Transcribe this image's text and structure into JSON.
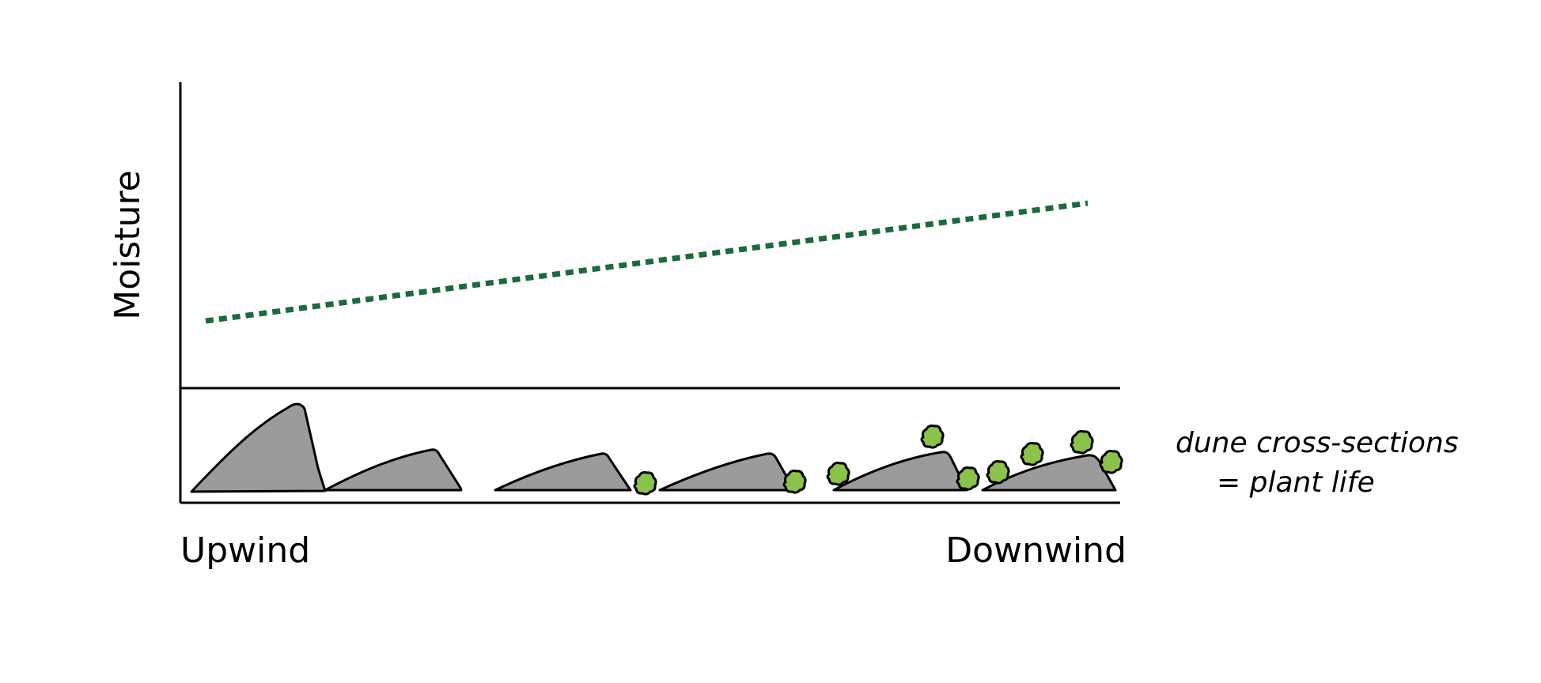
{
  "diagram": {
    "y_axis_label": "Moisture",
    "x_start_label": "Upwind",
    "x_end_label": "Downwind",
    "legend": {
      "line1": "dune cross-sections",
      "line2": "= plant life"
    },
    "colors": {
      "trend_line": "#1b6b3a",
      "dune_fill": "#9b9b9b",
      "plant_fill": "#8bc34a",
      "outline": "#000000"
    },
    "trend": "moisture increases from upwind to downwind",
    "dunes": [
      {
        "plants": 0
      },
      {
        "plants": 0
      },
      {
        "plants": 1
      },
      {
        "plants": 1
      },
      {
        "plants": 3
      },
      {
        "plants": 4
      }
    ]
  }
}
